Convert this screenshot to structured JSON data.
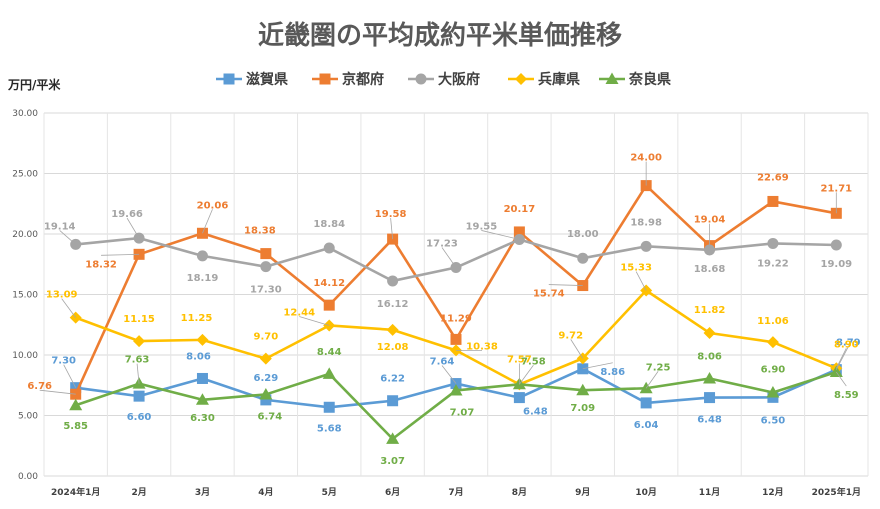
{
  "chart_data": {
    "type": "line",
    "title": "近畿圏の平均成約平米単価推移",
    "ylabel": "万円/平米",
    "ylim": [
      0,
      30
    ],
    "yticks": [
      "0.00",
      "5.00",
      "10.00",
      "15.00",
      "20.00",
      "25.00",
      "30.00"
    ],
    "categories": [
      "2024年1月",
      "2月",
      "3月",
      "4月",
      "5月",
      "6月",
      "7月",
      "8月",
      "9月",
      "10月",
      "11月",
      "12月",
      "2025年1月"
    ],
    "series": [
      {
        "name": "滋賀県",
        "color": "#5B9BD5",
        "marker": "square",
        "values": [
          7.3,
          6.6,
          8.06,
          6.29,
          5.68,
          6.22,
          7.64,
          6.48,
          8.86,
          6.04,
          6.48,
          6.5,
          8.79
        ],
        "labels": [
          "7.30",
          "6.60",
          "8.06",
          "6.29",
          "5.68",
          "6.22",
          "7.64",
          "6.48",
          "8.86",
          "6.04",
          "6.48",
          "6.50",
          "8.79"
        ]
      },
      {
        "name": "京都府",
        "color": "#ED7D31",
        "marker": "square",
        "values": [
          6.76,
          18.32,
          20.06,
          18.38,
          14.12,
          19.58,
          11.29,
          20.17,
          15.74,
          24.0,
          19.04,
          22.69,
          21.71
        ],
        "labels": [
          "6.76",
          "18.32",
          "20.06",
          "18.38",
          "14.12",
          "19.58",
          "11.29",
          "20.17",
          "15.74",
          "24.00",
          "19.04",
          "22.69",
          "21.71"
        ]
      },
      {
        "name": "大阪府",
        "color": "#A5A5A5",
        "marker": "circle",
        "values": [
          19.14,
          19.66,
          18.19,
          17.3,
          18.84,
          16.12,
          17.23,
          19.55,
          18.0,
          18.98,
          18.68,
          19.22,
          19.09
        ],
        "labels": [
          "19.14",
          "19.66",
          "18.19",
          "17.30",
          "18.84",
          "16.12",
          "17.23",
          "19.55",
          "18.00",
          "18.98",
          "18.68",
          "19.22",
          "19.09"
        ]
      },
      {
        "name": "兵庫県",
        "color": "#FFC000",
        "marker": "diamond",
        "values": [
          13.09,
          11.15,
          11.25,
          9.7,
          12.44,
          12.08,
          10.38,
          7.57,
          9.72,
          15.33,
          11.82,
          11.06,
          8.9
        ],
        "labels": [
          "13.09",
          "11.15",
          "11.25",
          "9.70",
          "12.44",
          "12.08",
          "10.38",
          "7.57",
          "9.72",
          "15.33",
          "11.82",
          "11.06",
          "8.90"
        ]
      },
      {
        "name": "奈良県",
        "color": "#70AD47",
        "marker": "triangle",
        "values": [
          5.85,
          7.63,
          6.3,
          6.74,
          8.44,
          3.07,
          7.07,
          7.58,
          7.09,
          7.25,
          8.06,
          6.9,
          8.59
        ],
        "labels": [
          "5.85",
          "7.63",
          "6.30",
          "6.74",
          "8.44",
          "3.07",
          "7.07",
          "7.58",
          "7.09",
          "7.25",
          "8.06",
          "6.90",
          "8.59"
        ]
      }
    ],
    "grid": true,
    "legend": "top"
  }
}
